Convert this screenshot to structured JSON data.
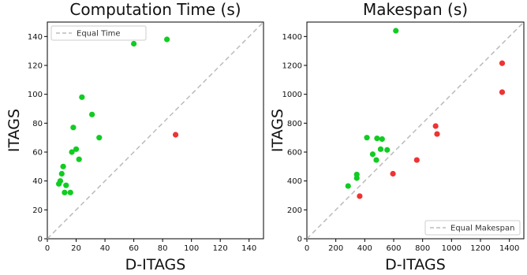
{
  "colors": {
    "green": "#11cc22",
    "red": "#ee3333",
    "diagonal": "#bbbbbb",
    "axis": "#000000"
  },
  "chart_data": [
    {
      "type": "scatter",
      "title": "Computation Time (s)",
      "xlabel": "D-ITAGS",
      "ylabel": "ITAGS",
      "xlim": [
        0,
        150
      ],
      "ylim": [
        0,
        150
      ],
      "xticks": [
        0,
        20,
        40,
        60,
        80,
        100,
        120,
        140
      ],
      "yticks": [
        0,
        20,
        40,
        60,
        80,
        100,
        120,
        140
      ],
      "legend": {
        "label": "Equal Time",
        "placement": "top-left"
      },
      "grid": false,
      "green_points": [
        [
          8,
          38
        ],
        [
          9,
          40
        ],
        [
          10,
          45
        ],
        [
          11,
          50
        ],
        [
          12,
          32
        ],
        [
          13,
          37
        ],
        [
          16,
          32
        ],
        [
          17,
          60
        ],
        [
          18,
          77
        ],
        [
          20,
          62
        ],
        [
          22,
          55
        ],
        [
          24,
          98
        ],
        [
          31,
          86
        ],
        [
          36,
          70
        ],
        [
          60,
          135
        ],
        [
          83,
          138
        ]
      ],
      "red_points": [
        [
          89,
          72
        ]
      ]
    },
    {
      "type": "scatter",
      "title": "Makespan (s)",
      "xlabel": "D-ITAGS",
      "ylabel": "ITAGS",
      "xlim": [
        0,
        1500
      ],
      "ylim": [
        0,
        1500
      ],
      "xticks": [
        0,
        200,
        400,
        600,
        800,
        1000,
        1200,
        1400
      ],
      "yticks": [
        0,
        200,
        400,
        600,
        800,
        1000,
        1200,
        1400
      ],
      "legend": {
        "label": "Equal Makespan",
        "placement": "bottom-right"
      },
      "grid": false,
      "green_points": [
        [
          285,
          365
        ],
        [
          345,
          420
        ],
        [
          345,
          445
        ],
        [
          415,
          700
        ],
        [
          455,
          585
        ],
        [
          480,
          545
        ],
        [
          485,
          695
        ],
        [
          510,
          620
        ],
        [
          520,
          690
        ],
        [
          555,
          615
        ],
        [
          615,
          1440
        ]
      ],
      "red_points": [
        [
          365,
          295
        ],
        [
          595,
          450
        ],
        [
          760,
          545
        ],
        [
          890,
          780
        ],
        [
          900,
          725
        ],
        [
          1350,
          1015
        ],
        [
          1350,
          1215
        ]
      ]
    }
  ]
}
